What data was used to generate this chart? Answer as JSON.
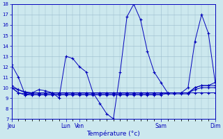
{
  "xlabel": "Température (°c)",
  "ylim": [
    7,
    18
  ],
  "yticks": [
    7,
    8,
    9,
    10,
    11,
    12,
    13,
    14,
    15,
    16,
    17,
    18
  ],
  "bg_color": "#cce8ee",
  "line_color": "#0000bb",
  "grid_color": "#99bbcc",
  "xlim": [
    0,
    30
  ],
  "day_ticks": [
    0,
    8,
    10,
    22,
    30
  ],
  "day_labels": [
    "Jeu",
    "Lun",
    "Ven",
    "Sam",
    "Dim"
  ],
  "series": [
    [
      12.2,
      11.0,
      9.3,
      9.5,
      9.8,
      9.7,
      9.5,
      9.0,
      13.0,
      12.8,
      12.0,
      11.5,
      9.5,
      8.5,
      7.5,
      7.0,
      11.5,
      16.8,
      18.0,
      16.5,
      13.5,
      11.5,
      10.5,
      9.5,
      9.5,
      9.5,
      10.0,
      14.4,
      17.0,
      15.2,
      10.5
    ],
    [
      10.0,
      9.5,
      9.3,
      9.3,
      9.3,
      9.3,
      9.3,
      9.3,
      9.3,
      9.3,
      9.3,
      9.3,
      9.3,
      9.3,
      9.3,
      9.3,
      9.3,
      9.3,
      9.3,
      9.3,
      9.3,
      9.3,
      9.3,
      9.5,
      9.5,
      9.5,
      9.5,
      9.5,
      9.5,
      9.5,
      9.5
    ],
    [
      10.0,
      9.8,
      9.6,
      9.5,
      9.5,
      9.5,
      9.5,
      9.5,
      9.5,
      9.5,
      9.5,
      9.5,
      9.5,
      9.5,
      9.5,
      9.5,
      9.5,
      9.5,
      9.5,
      9.5,
      9.5,
      9.5,
      9.5,
      9.5,
      9.5,
      9.5,
      9.5,
      9.8,
      10.0,
      10.0,
      10.0
    ],
    [
      10.0,
      9.5,
      9.4,
      9.4,
      9.4,
      9.4,
      9.4,
      9.4,
      9.4,
      9.4,
      9.4,
      9.4,
      9.4,
      9.4,
      9.4,
      9.4,
      9.4,
      9.4,
      9.4,
      9.4,
      9.4,
      9.4,
      9.4,
      9.4,
      9.4,
      9.4,
      9.4,
      10.0,
      10.2,
      10.2,
      10.2
    ],
    [
      10.2,
      9.8,
      9.5,
      9.5,
      9.5,
      9.5,
      9.5,
      9.5,
      9.5,
      9.5,
      9.5,
      9.5,
      9.5,
      9.5,
      9.5,
      9.5,
      9.5,
      9.5,
      9.5,
      9.5,
      9.5,
      9.5,
      9.5,
      9.5,
      9.5,
      9.5,
      9.5,
      10.0,
      10.2,
      10.2,
      10.5
    ]
  ]
}
